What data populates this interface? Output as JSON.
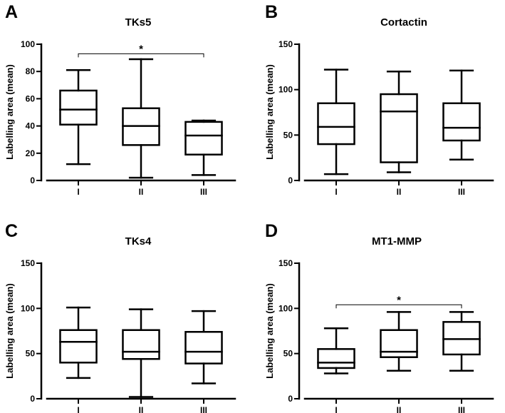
{
  "figure": {
    "background": "#ffffff",
    "ink": "#000000"
  },
  "chart_data": [
    {
      "panel": "A",
      "type": "box",
      "title": "TKs5",
      "ylabel": "Labelling area (mean)",
      "xlabel": "",
      "ylim": [
        0,
        100
      ],
      "yticks": [
        0,
        20,
        40,
        60,
        80,
        100
      ],
      "categories": [
        "I",
        "II",
        "III"
      ],
      "boxes": [
        {
          "category": "I",
          "min": 12,
          "q1": 41,
          "median": 52,
          "q3": 66,
          "max": 81
        },
        {
          "category": "II",
          "min": 2,
          "q1": 26,
          "median": 40,
          "q3": 53,
          "max": 89
        },
        {
          "category": "III",
          "min": 4,
          "q1": 19,
          "median": 33,
          "q3": 43,
          "max": 44
        }
      ],
      "significance": {
        "from": "I",
        "to": "III",
        "y": 93,
        "label": "*"
      }
    },
    {
      "panel": "B",
      "type": "box",
      "title": "Cortactin",
      "ylabel": "Labelling area (mean)",
      "xlabel": "",
      "ylim": [
        0,
        150
      ],
      "yticks": [
        0,
        50,
        100,
        150
      ],
      "categories": [
        "I",
        "II",
        "III"
      ],
      "boxes": [
        {
          "category": "I",
          "min": 7,
          "q1": 40,
          "median": 59,
          "q3": 85,
          "max": 122
        },
        {
          "category": "II",
          "min": 9,
          "q1": 20,
          "median": 76,
          "q3": 95,
          "max": 120
        },
        {
          "category": "III",
          "min": 23,
          "q1": 44,
          "median": 58,
          "q3": 85,
          "max": 121
        }
      ]
    },
    {
      "panel": "C",
      "type": "box",
      "title": "TKs4",
      "ylabel": "Labelling area (mean)",
      "xlabel": "",
      "ylim": [
        0,
        150
      ],
      "yticks": [
        0,
        50,
        100,
        150
      ],
      "categories": [
        "I",
        "II",
        "III"
      ],
      "boxes": [
        {
          "category": "I",
          "min": 23,
          "q1": 40,
          "median": 63,
          "q3": 76,
          "max": 101
        },
        {
          "category": "II",
          "min": 2,
          "q1": 44,
          "median": 52,
          "q3": 76,
          "max": 99
        },
        {
          "category": "III",
          "min": 17,
          "q1": 39,
          "median": 52,
          "q3": 74,
          "max": 97
        }
      ]
    },
    {
      "panel": "D",
      "type": "box",
      "title": "MT1-MMP",
      "ylabel": "Labelling area (mean)",
      "xlabel": "",
      "ylim": [
        0,
        150
      ],
      "yticks": [
        0,
        50,
        100,
        150
      ],
      "categories": [
        "I",
        "II",
        "III"
      ],
      "boxes": [
        {
          "category": "I",
          "min": 28,
          "q1": 34,
          "median": 40,
          "q3": 55,
          "max": 78
        },
        {
          "category": "II",
          "min": 31,
          "q1": 46,
          "median": 52,
          "q3": 76,
          "max": 96
        },
        {
          "category": "III",
          "min": 31,
          "q1": 49,
          "median": 66,
          "q3": 85,
          "max": 96
        }
      ],
      "significance": {
        "from": "I",
        "to": "III",
        "y": 104,
        "label": "*"
      }
    }
  ]
}
